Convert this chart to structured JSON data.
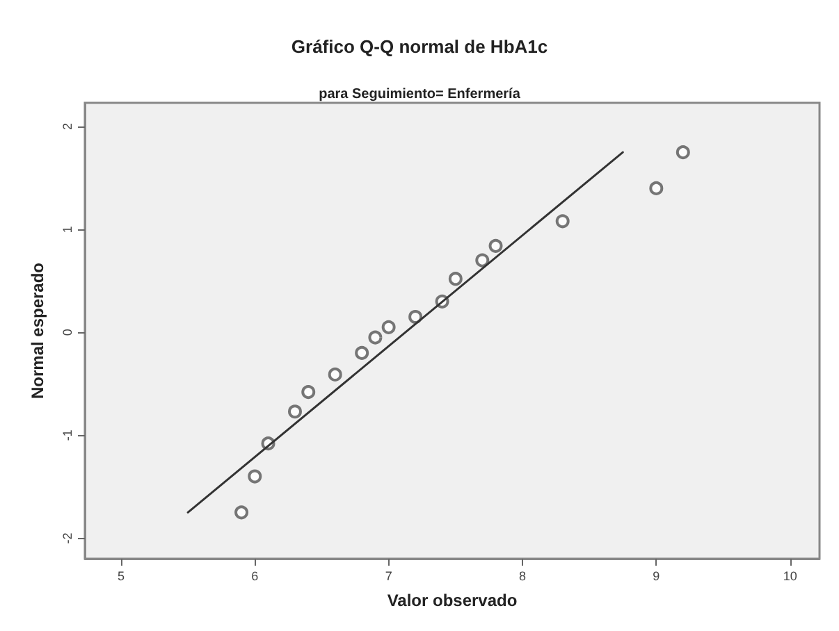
{
  "chart_data": {
    "type": "scatter",
    "title": "Gráfico Q-Q normal de HbA1c",
    "subtitle": "para Seguimiento= Enfermería",
    "xlabel": "Valor observado",
    "ylabel": "Normal esperado",
    "xlim": [
      4.73,
      10.22
    ],
    "xticks": [
      5,
      6,
      7,
      8,
      9,
      10
    ],
    "ylim": [
      -2.2,
      2.23
    ],
    "yticks": [
      -2,
      -1,
      0,
      1,
      2
    ],
    "grid": false,
    "marker": "circle",
    "series": [
      {
        "color": "#555555",
        "x": [
          5.9,
          6.0,
          6.1,
          6.3,
          6.4,
          6.6,
          6.8,
          6.9,
          7.0,
          7.2,
          7.4,
          7.5,
          7.7,
          7.8,
          8.3,
          9.0,
          9.2
        ],
        "values": [
          -1.75,
          -1.4,
          -1.08,
          -0.77,
          -0.58,
          -0.41,
          -0.2,
          -0.05,
          0.05,
          0.15,
          0.3,
          0.52,
          0.7,
          0.84,
          1.08,
          1.4,
          1.75
        ]
      },
      {
        "type": "line",
        "color": "#333333",
        "x": [
          5.5,
          8.75
        ],
        "values": [
          -1.75,
          1.75
        ],
        "line_style": "solid",
        "marker": "none"
      }
    ]
  }
}
